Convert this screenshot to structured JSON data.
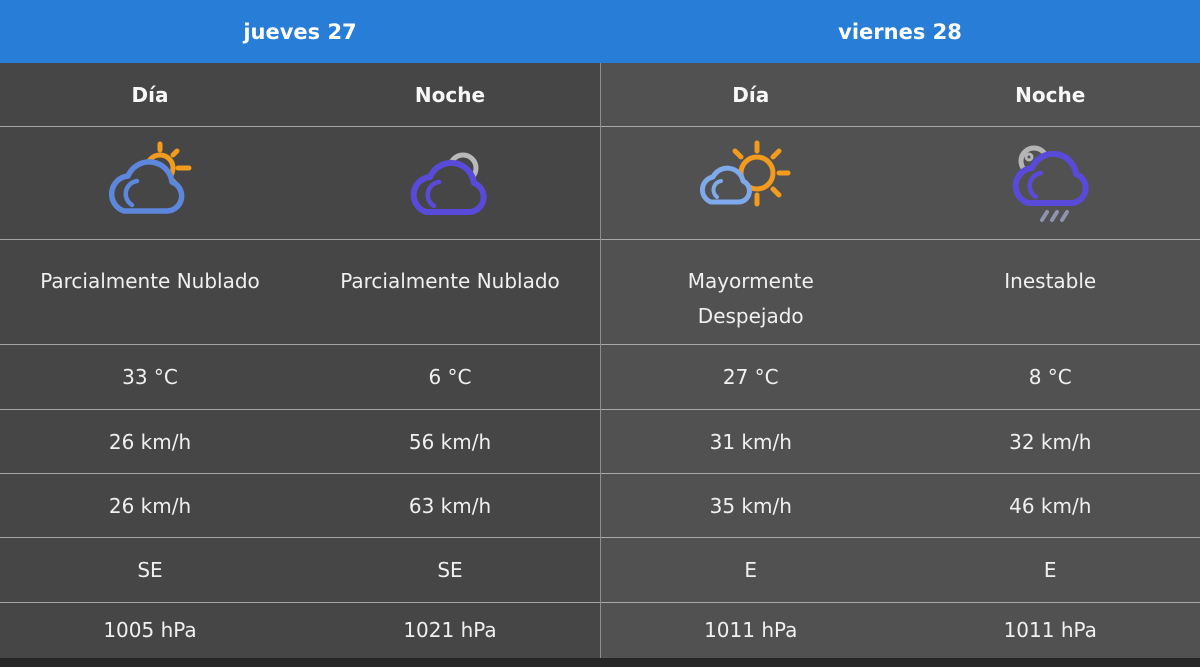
{
  "colors": {
    "header_blue": "#287ed7",
    "day1_background": "#464646",
    "day2_background": "#515151",
    "text": "#f0f0f0",
    "sun_orange": "#f29b1d",
    "cloud_blue_day": "#5d86dd",
    "cloud_light_blue": "#7ea9ea",
    "cloud_indigo_night": "#5a4ad9",
    "moon_gray": "#b9b9b9"
  },
  "days": [
    {
      "label": "jueves 27",
      "periods": [
        {
          "label": "Día",
          "icon": "sun-behind-cloud",
          "condition": "Parcialmente Nublado",
          "temperature": "33 °C",
          "wind_speed": "26 km/h",
          "wind_gust": "26 km/h",
          "wind_direction": "SE",
          "pressure": "1005 hPa"
        },
        {
          "label": "Noche",
          "icon": "moon-behind-cloud",
          "condition": "Parcialmente Nublado",
          "temperature": "6 °C",
          "wind_speed": "56 km/h",
          "wind_gust": "63 km/h",
          "wind_direction": "SE",
          "pressure": "1021 hPa"
        }
      ]
    },
    {
      "label": "viernes 28",
      "periods": [
        {
          "label": "Día",
          "icon": "sun-with-small-cloud",
          "condition": "Mayormente\nDespejado",
          "temperature": "27 °C",
          "wind_speed": "31 km/h",
          "wind_gust": "35 km/h",
          "wind_direction": "E",
          "pressure": "1011 hPa"
        },
        {
          "label": "Noche",
          "icon": "moon-cloud-rain",
          "condition": "Inestable",
          "temperature": "8 °C",
          "wind_speed": "32 km/h",
          "wind_gust": "46 km/h",
          "wind_direction": "E",
          "pressure": "1011 hPa"
        }
      ]
    }
  ]
}
